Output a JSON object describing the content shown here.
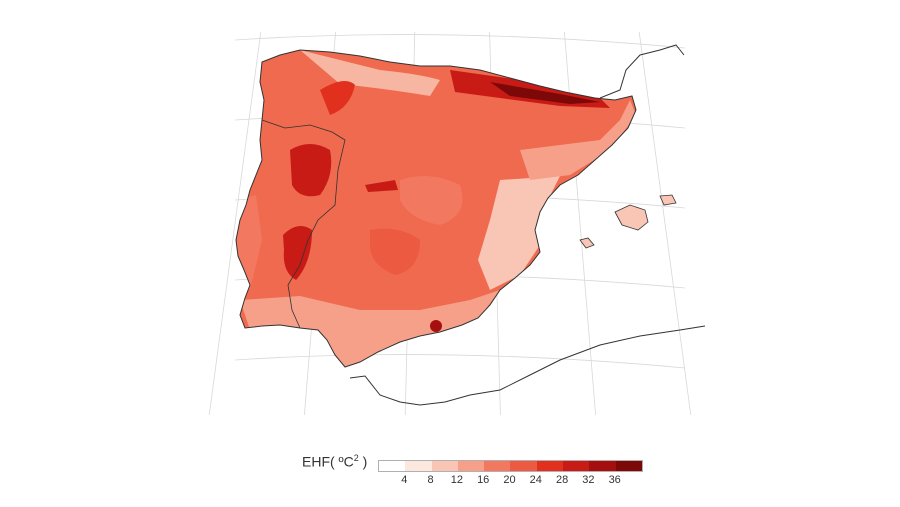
{
  "legend": {
    "label": "EHF( ºC",
    "label_sup": "2",
    "label_close": " )",
    "ticks": [
      "4",
      "8",
      "12",
      "16",
      "20",
      "24",
      "28",
      "32",
      "36"
    ],
    "colors": [
      "#fde8e0",
      "#f9c5b4",
      "#f6a08a",
      "#f2785f",
      "#ec5a42",
      "#e2301f",
      "#c81b16",
      "#a60f10",
      "#7d0808"
    ]
  },
  "map": {
    "region": "Iberian Peninsula",
    "variable": "EHF",
    "projection": "conic",
    "graticule": true
  }
}
